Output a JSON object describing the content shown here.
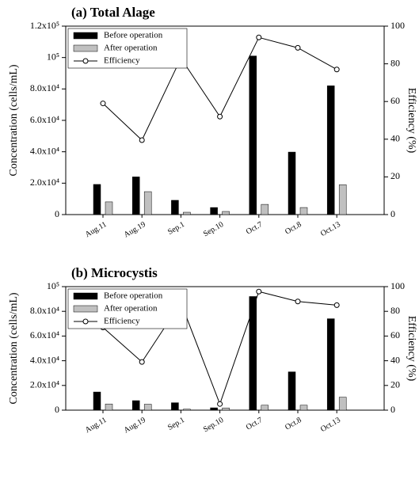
{
  "chart_data": [
    {
      "type": "bar",
      "title": "(a) Total Alage",
      "y_label": "Concentration (cells/mL)",
      "y2_label": "Efficiency (%)",
      "categories": [
        "Aug.11",
        "Aug.19",
        "Sep.1",
        "Sep.10",
        "Oct.7",
        "Oct.8",
        "Oct.13"
      ],
      "series": [
        {
          "name": "Before operation",
          "color": "#000000",
          "values": [
            19200,
            24000,
            9100,
            4500,
            101000,
            39800,
            82000
          ]
        },
        {
          "name": "After operation",
          "color": "#c0c0c0",
          "values": [
            8100,
            14600,
            1500,
            2000,
            6500,
            4500,
            19000
          ]
        },
        {
          "name": "Efficiency",
          "type": "line",
          "axis": "y2",
          "color": "#000000",
          "values": [
            59,
            39.5,
            83,
            52,
            94,
            88.5,
            77
          ]
        }
      ],
      "ylim": [
        0,
        120000
      ],
      "yticks": [
        0,
        {
          "value": 20000,
          "label": "2.0x10⁴"
        },
        {
          "value": 40000,
          "label": "4.0x10⁴"
        },
        {
          "value": 60000,
          "label": "6.0x10⁴"
        },
        {
          "value": 80000,
          "label": "8.0x10⁴"
        },
        {
          "value": 100000,
          "label": "10⁵"
        },
        {
          "value": 120000,
          "label": "1.2x10⁵"
        }
      ],
      "y2lim": [
        0,
        100
      ],
      "y2ticks": [
        0,
        20,
        40,
        60,
        80,
        100
      ],
      "legend": "upper left"
    },
    {
      "type": "bar",
      "title": "(b) Microcystis",
      "y_label": "Concentration (cells/mL)",
      "y2_label": "Efficiency (%)",
      "categories": [
        "Aug.11",
        "Aug.19",
        "Sep.1",
        "Sep.10",
        "Oct.7",
        "Oct.8",
        "Oct.13"
      ],
      "series": [
        {
          "name": "Before operation",
          "color": "#000000",
          "values": [
            14700,
            7700,
            6000,
            1900,
            92000,
            31000,
            74000
          ]
        },
        {
          "name": "After operation",
          "color": "#c0c0c0",
          "values": [
            5000,
            4800,
            800,
            1800,
            4000,
            4000,
            10500
          ]
        },
        {
          "name": "Efficiency",
          "type": "line",
          "axis": "y2",
          "color": "#000000",
          "values": [
            67,
            39,
            87,
            5,
            96,
            88,
            85
          ]
        }
      ],
      "ylim": [
        0,
        100000
      ],
      "yticks": [
        0,
        {
          "value": 20000,
          "label": "2.0x10⁴"
        },
        {
          "value": 40000,
          "label": "4.0x10⁴"
        },
        {
          "value": 60000,
          "label": "6.0x10⁴"
        },
        {
          "value": 80000,
          "label": "8.0x10⁴"
        },
        {
          "value": 100000,
          "label": "10⁵"
        }
      ],
      "y2lim": [
        0,
        100
      ],
      "y2ticks": [
        0,
        20,
        40,
        60,
        80,
        100
      ],
      "legend": "upper left"
    }
  ]
}
